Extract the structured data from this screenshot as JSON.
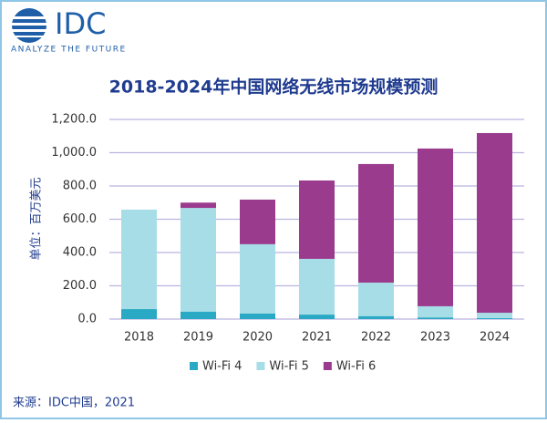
{
  "header": {
    "brand": "IDC",
    "tagline": "ANALYZE THE FUTURE"
  },
  "chart_data": {
    "type": "bar",
    "stacked": true,
    "title": "2018-2024年中国网络无线市场规模预测",
    "y_label": "单位：百万美元",
    "source": "来源：IDC中国，2021",
    "categories": [
      "2018",
      "2019",
      "2020",
      "2021",
      "2022",
      "2023",
      "2024"
    ],
    "series": [
      {
        "name": "Wi-Fi 4",
        "color": "#2aa9c4",
        "values": [
          60,
          45,
          33,
          27,
          18,
          10,
          6
        ]
      },
      {
        "name": "Wi-Fi 5",
        "color": "#a6dde6",
        "values": [
          598,
          623,
          417,
          335,
          201,
          67,
          32
        ]
      },
      {
        "name": "Wi-Fi 6",
        "color": "#9b3b8e",
        "values": [
          0,
          32,
          268,
          471,
          713,
          948,
          1080
        ]
      }
    ],
    "ylim": [
      0,
      1200
    ],
    "yticks": [
      {
        "value": 0,
        "label": "0.0"
      },
      {
        "value": 200,
        "label": "200.0"
      },
      {
        "value": 400,
        "label": "400.0"
      },
      {
        "value": 600,
        "label": "600.0"
      },
      {
        "value": 800,
        "label": "800.0"
      },
      {
        "value": 1000,
        "label": "1,000.0"
      },
      {
        "value": 1200,
        "label": "1,200.0"
      }
    ],
    "grid": true,
    "grid_color": "#b9b4e0",
    "legend": "bottom"
  }
}
